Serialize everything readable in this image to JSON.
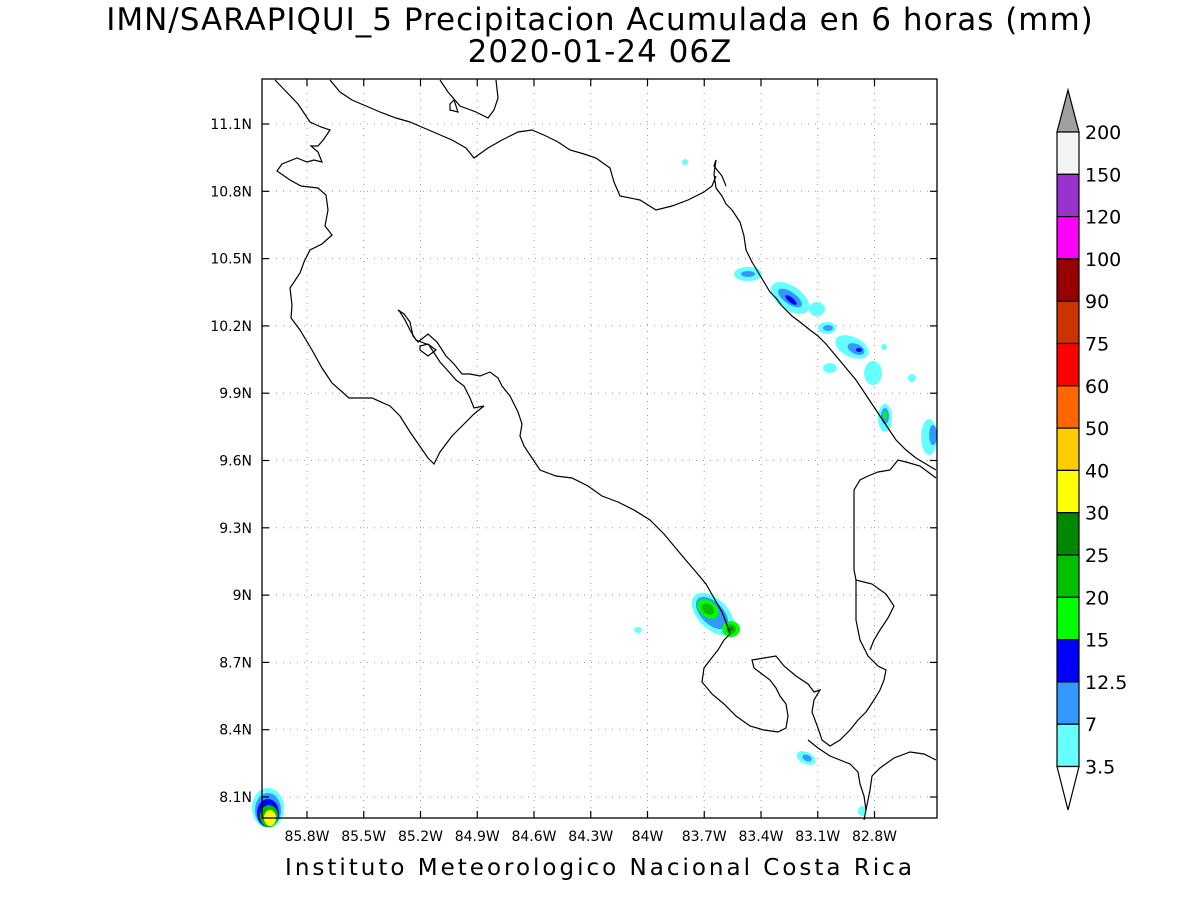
{
  "title": {
    "line1": "IMN/SARAPIQUI_5 Precipitacion Acumulada en 6 horas (mm)",
    "line2": "2020-01-24 06Z"
  },
  "footer": "Instituto Meteorologico Nacional Costa Rica",
  "map": {
    "lon_labels": [
      "85.8W",
      "85.5W",
      "85.2W",
      "84.9W",
      "84.6W",
      "84.3W",
      "84W",
      "83.7W",
      "83.4W",
      "83.1W",
      "82.8W"
    ],
    "lat_labels": [
      "11.1N",
      "10.8N",
      "10.5N",
      "10.2N",
      "9.9N",
      "9.6N",
      "9.3N",
      "9N",
      "8.7N",
      "8.4N",
      "8.1N"
    ],
    "gridlines": true
  },
  "legend": {
    "labels": [
      "200",
      "150",
      "120",
      "100",
      "90",
      "75",
      "60",
      "50",
      "40",
      "30",
      "25",
      "20",
      "15",
      "12.5",
      "7",
      "3.5"
    ],
    "colors": [
      "#a0a0a0",
      "#f4f4f4",
      "#9932cc",
      "#ff00ff",
      "#990000",
      "#cc3300",
      "#ff0000",
      "#ff6600",
      "#ffcc00",
      "#ffff00",
      "#008800",
      "#00c000",
      "#00ff00",
      "#0000ff",
      "#3399ff",
      "#66ffff"
    ]
  }
}
